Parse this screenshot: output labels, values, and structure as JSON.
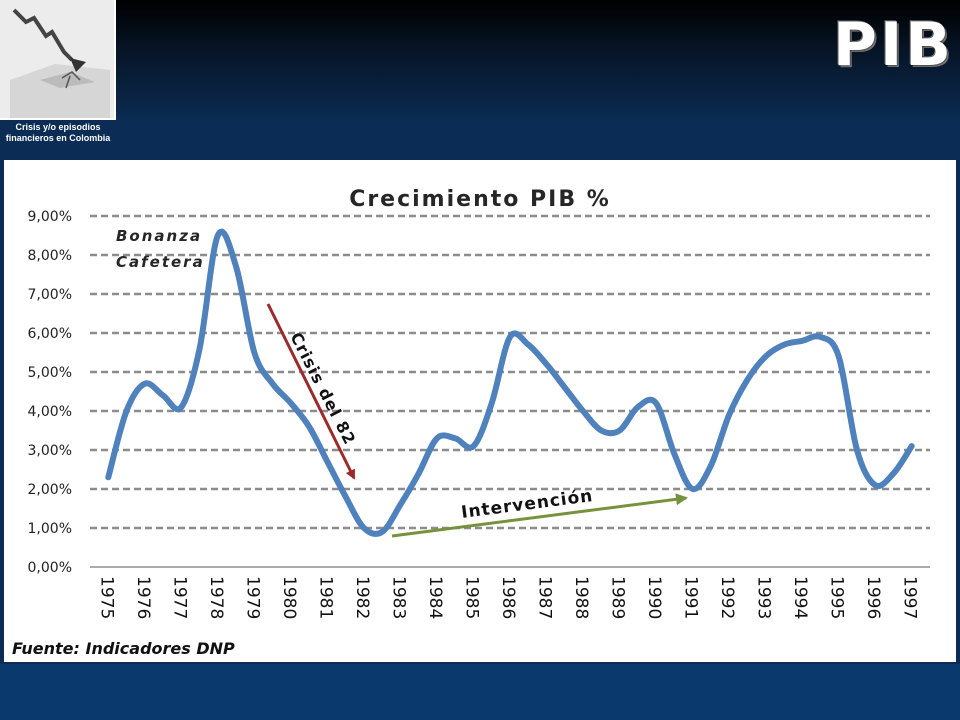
{
  "header": {
    "title": "PIB",
    "thumbnail_caption": [
      "Crisis y/o episodios",
      "financieros en Colombia"
    ]
  },
  "source_note": "Fuente: Indicadores DNP",
  "annotations": {
    "bonanza": [
      "Bonanza",
      "Cafetera"
    ],
    "crisis": "Crisis del 82",
    "intervencion": "Intervención"
  },
  "colors": {
    "line": "#4f81bd",
    "crisis_arrow": "#9b2b2b",
    "intervencion_arrow": "#76923c",
    "grid": "#8c8c8c"
  },
  "chart_data": {
    "type": "line",
    "title": "Crecimiento  PIB %",
    "categories": [
      "1975",
      "1976",
      "1977",
      "1978",
      "1979",
      "1980",
      "1981",
      "1982",
      "1983",
      "1984",
      "1985",
      "1986",
      "1987",
      "1988",
      "1989",
      "1990",
      "1991",
      "1992",
      "1993",
      "1994",
      "1995",
      "1996",
      "1997"
    ],
    "x": [
      1975,
      1975.5,
      1976,
      1976.5,
      1977,
      1977.5,
      1978,
      1978.5,
      1979,
      1979.5,
      1980,
      1980.5,
      1981,
      1981.5,
      1982,
      1982.5,
      1983,
      1983.5,
      1984,
      1984.5,
      1985,
      1985.5,
      1986,
      1986.5,
      1987,
      1987.5,
      1988,
      1988.5,
      1989,
      1989.5,
      1990,
      1990.5,
      1991,
      1991.5,
      1992,
      1992.5,
      1993,
      1993.5,
      1994,
      1994.5,
      1995,
      1995.5,
      1996,
      1996.5,
      1997
    ],
    "values": [
      2.3,
      4.0,
      4.7,
      4.4,
      4.1,
      5.6,
      8.5,
      7.7,
      5.5,
      4.7,
      4.2,
      3.6,
      2.7,
      1.8,
      1.0,
      0.9,
      1.6,
      2.4,
      3.3,
      3.3,
      3.1,
      4.2,
      5.9,
      5.7,
      5.2,
      4.6,
      4.0,
      3.5,
      3.5,
      4.1,
      4.2,
      2.9,
      2.0,
      2.6,
      3.9,
      4.8,
      5.4,
      5.7,
      5.8,
      5.9,
      5.4,
      3.0,
      2.1,
      2.4,
      3.1
    ],
    "y_tick_labels": [
      "0,00%",
      "1,00%",
      "2,00%",
      "3,00%",
      "4,00%",
      "5,00%",
      "6,00%",
      "7,00%",
      "8,00%",
      "9,00%"
    ],
    "ylim": [
      0,
      9
    ],
    "grid": "horizontal-dashed",
    "legend": "none"
  }
}
